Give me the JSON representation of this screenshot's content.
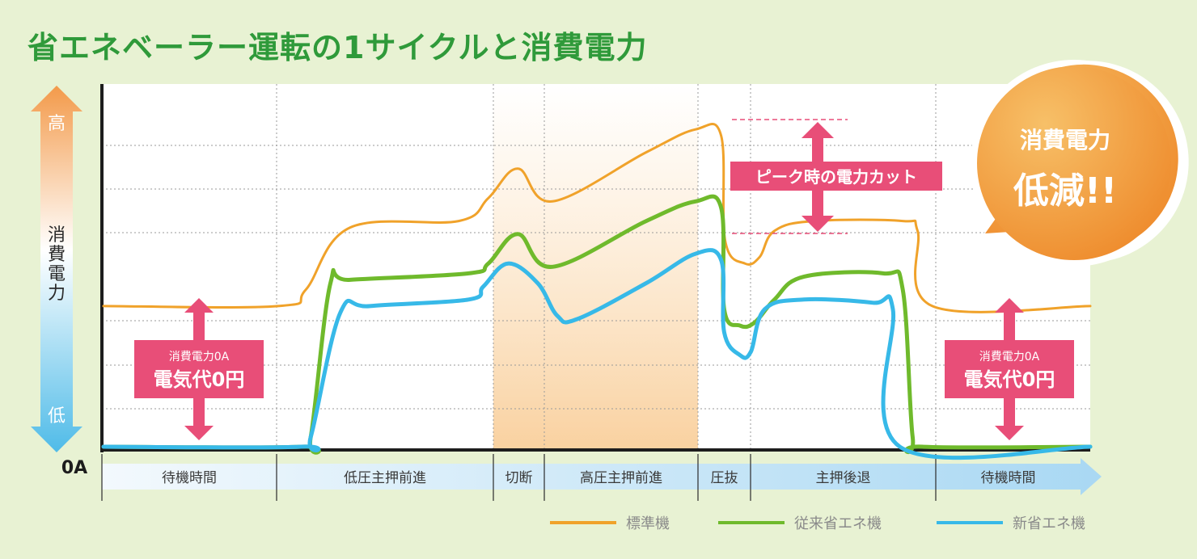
{
  "title": "省エネベーラー運転の1サイクルと消費電力",
  "y_axis": {
    "high": "高",
    "label": "消費電力",
    "low": "低",
    "zero": "0A"
  },
  "phases": [
    "待機時間",
    "低圧主押前進",
    "切断",
    "高圧主押前進",
    "圧抜",
    "主押後退",
    "待機時間"
  ],
  "annotations": {
    "peak_cut": "ピーク時の電力カット",
    "zero_small": "消費電力0A",
    "zero_big": "電気代0円",
    "burst_line1": "消費電力",
    "burst_line2": "低減!!"
  },
  "colors": {
    "standard": "#f0a22a",
    "conventional": "#6fba2c",
    "new": "#37b9e8",
    "accent_pink": "#e84e78",
    "title_green": "#2f9a3a"
  },
  "chart_data": {
    "type": "line",
    "title": "省エネベーラー運転の1サイクルと消費電力",
    "ylabel": "消費電力",
    "y_ticks_text": [
      "高",
      "低"
    ],
    "ylim": [
      0,
      100
    ],
    "grid": true,
    "legend_placement": "bottom-right",
    "x_note": "time in cycle, categories are phases",
    "phase_categories": [
      "待機時間",
      "低圧主押前進",
      "切断",
      "高圧主押前進",
      "圧抜",
      "主押後退",
      "待機時間"
    ],
    "series": [
      {
        "name": "標準機",
        "color": "#f0a22a",
        "points": [
          [
            0,
            43
          ],
          [
            17.7,
            43
          ],
          [
            20.5,
            48
          ],
          [
            25,
            67
          ],
          [
            36,
            69
          ],
          [
            39,
            76
          ],
          [
            42,
            85
          ],
          [
            45.5,
            75
          ],
          [
            55,
            90
          ],
          [
            60,
            97
          ],
          [
            62.6,
            95
          ],
          [
            63,
            63
          ],
          [
            65,
            56
          ],
          [
            66.5,
            58
          ],
          [
            68,
            66
          ],
          [
            72,
            69
          ],
          [
            81,
            69
          ],
          [
            82.5,
            66
          ],
          [
            84,
            43
          ],
          [
            100,
            43
          ]
        ]
      },
      {
        "name": "従来省エネ機",
        "color": "#6fba2c",
        "points": [
          [
            0,
            0
          ],
          [
            20,
            0
          ],
          [
            21,
            3
          ],
          [
            23,
            50
          ],
          [
            25,
            51
          ],
          [
            37,
            53
          ],
          [
            39,
            56
          ],
          [
            42,
            65
          ],
          [
            45.5,
            55
          ],
          [
            55,
            69
          ],
          [
            60,
            75
          ],
          [
            62.6,
            73
          ],
          [
            62.9,
            42
          ],
          [
            64.5,
            37
          ],
          [
            66,
            38
          ],
          [
            68,
            45
          ],
          [
            71,
            52
          ],
          [
            79,
            53
          ],
          [
            81,
            48
          ],
          [
            82,
            3
          ],
          [
            83,
            0
          ],
          [
            100,
            0
          ]
        ]
      },
      {
        "name": "新省エネ機",
        "color": "#37b9e8",
        "points": [
          [
            0,
            0
          ],
          [
            20,
            0
          ],
          [
            21,
            3
          ],
          [
            24,
            41
          ],
          [
            27,
            43
          ],
          [
            37,
            45
          ],
          [
            38.5,
            49
          ],
          [
            41,
            56
          ],
          [
            44,
            50
          ],
          [
            46,
            40
          ],
          [
            48,
            39
          ],
          [
            55,
            50
          ],
          [
            60,
            59
          ],
          [
            62.6,
            57
          ],
          [
            62.9,
            35
          ],
          [
            64.5,
            28
          ],
          [
            65.6,
            29
          ],
          [
            67,
            42
          ],
          [
            71,
            45
          ],
          [
            78,
            44
          ],
          [
            80,
            42
          ],
          [
            80.7,
            0
          ],
          [
            100,
            0
          ]
        ]
      }
    ]
  }
}
